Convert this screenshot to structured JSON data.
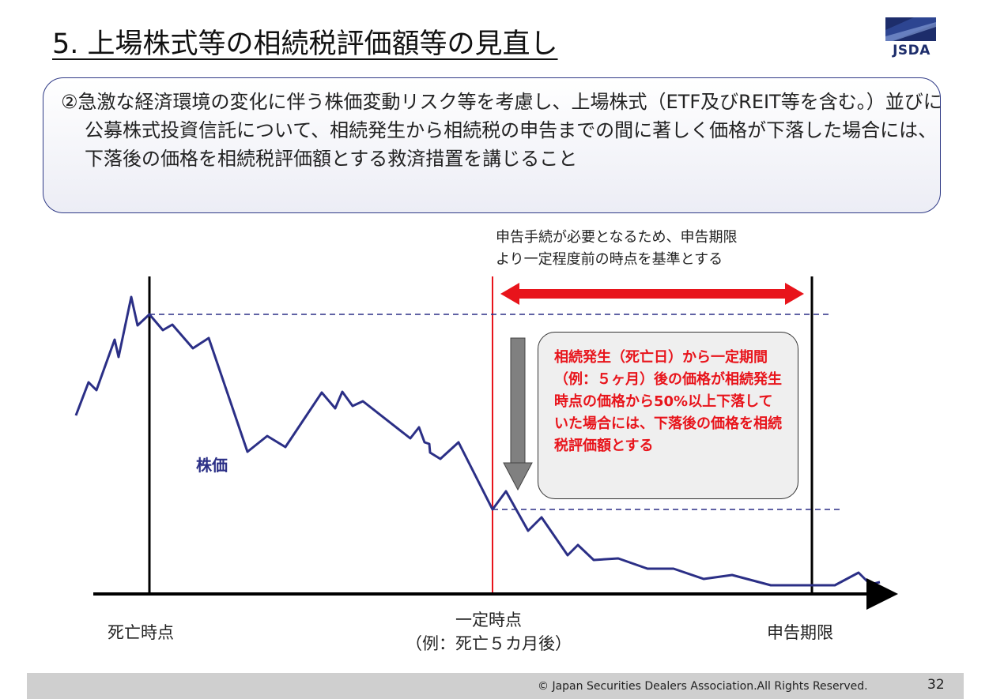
{
  "title": "5. 上場株式等の相続税評価額等の見直し",
  "logo": {
    "text": "JSDA",
    "color": "#1d2d6b",
    "icon": "jsda-logo"
  },
  "summary": "②急激な経済環境の変化に伴う株価変動リスク等を考慮し、上場株式（ETF及びREIT等を含む。）並びに公募株式投資信託について、相続発生から相続税の申告までの間に著しく価格が下落した場合には、下落後の価格を相続税評価額とする救済措置を講じること",
  "chart": {
    "note_line1": "申告手続が必要となるため、申告期限",
    "note_line2": "より一定程度前の時点を基準とする",
    "series_label": "株価",
    "labels": {
      "death": "死亡時点",
      "fixed_point_line1": "一定時点",
      "fixed_point_line2": "（例：死亡５カ月後）",
      "deadline": "申告期限"
    },
    "colors": {
      "line": "#2b2f86",
      "accent": "#e8141b",
      "arrow": "#808080"
    }
  },
  "callout": "相続発生（死亡日）から一定期間（例：５ヶ月）後の価格が相続発生時点の価格から50%以上下落していた場合には、下落後の価格を相続税評価額とする",
  "footer": {
    "copyright": "© Japan Securities Dealers Association.All Rights Reserved.",
    "page": "32"
  }
}
